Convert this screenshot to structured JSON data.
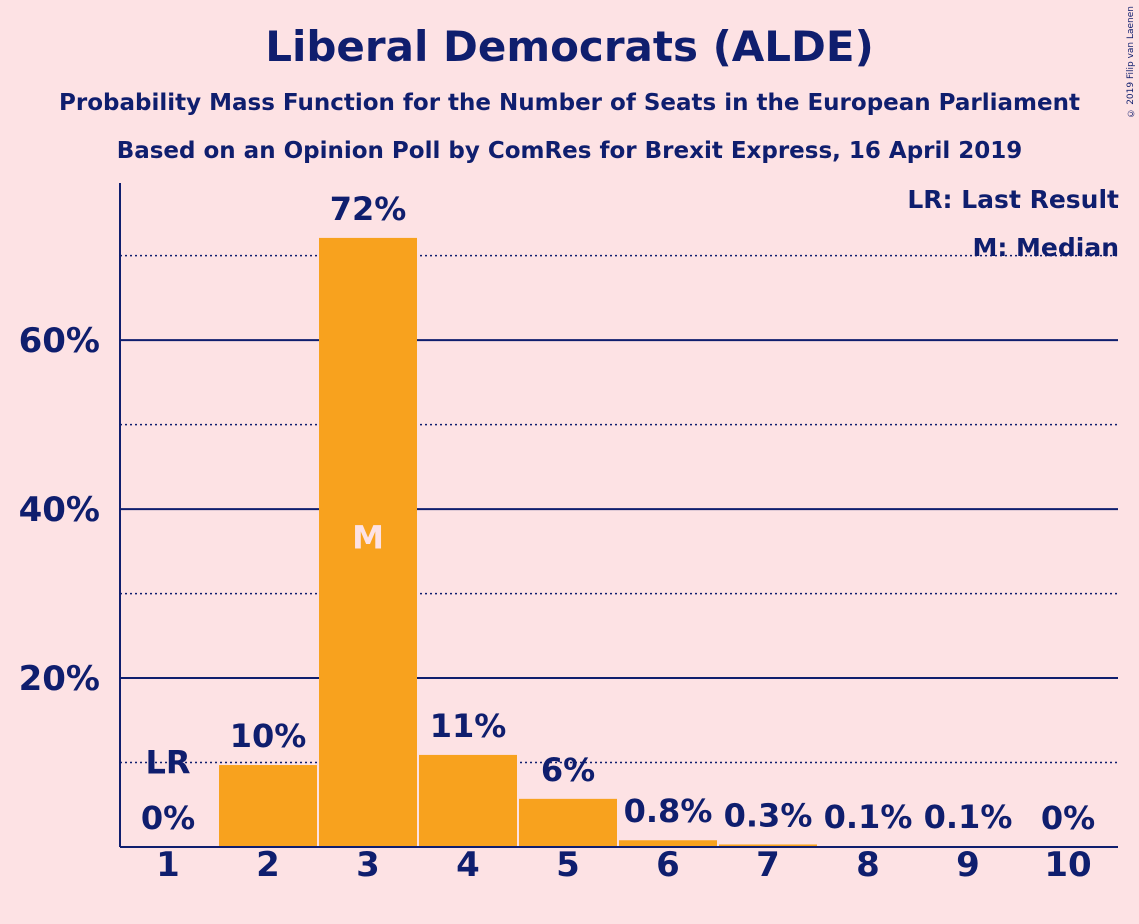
{
  "chart_data": {
    "type": "bar",
    "title": "Liberal Democrats (ALDE)",
    "subtitle": "Probability Mass Function for the Number of Seats in the European Parliament",
    "subtitle2": "Based on an Opinion Poll by ComRes for Brexit Express, 16 April 2019",
    "categories": [
      "1",
      "2",
      "3",
      "4",
      "5",
      "6",
      "7",
      "8",
      "9",
      "10"
    ],
    "values": [
      0,
      9.7,
      72.1,
      10.9,
      5.7,
      0.8,
      0.3,
      0.1,
      0.1,
      0
    ],
    "value_labels": [
      "0%",
      "10%",
      "72%",
      "11%",
      "6%",
      "0.8%",
      "0.3%",
      "0.1%",
      "0.1%",
      "0%"
    ],
    "ylim": [
      0,
      78.6
    ],
    "yticks": [
      20,
      40,
      60
    ],
    "ytick_labels": [
      "20%",
      "40%",
      "60%"
    ],
    "minor_gridlines": [
      10,
      30,
      50,
      70
    ],
    "last_result": {
      "category": "1",
      "label": "LR",
      "y": 10
    },
    "median": {
      "category": "3",
      "label": "M"
    },
    "legend": [
      "LR: Last Result",
      "M: Median"
    ],
    "legend_position": "top-right",
    "bar_color": "#f8a21e",
    "axis_color": "#0f1e6e"
  },
  "copyright": "© 2019 Filip van Laenen"
}
